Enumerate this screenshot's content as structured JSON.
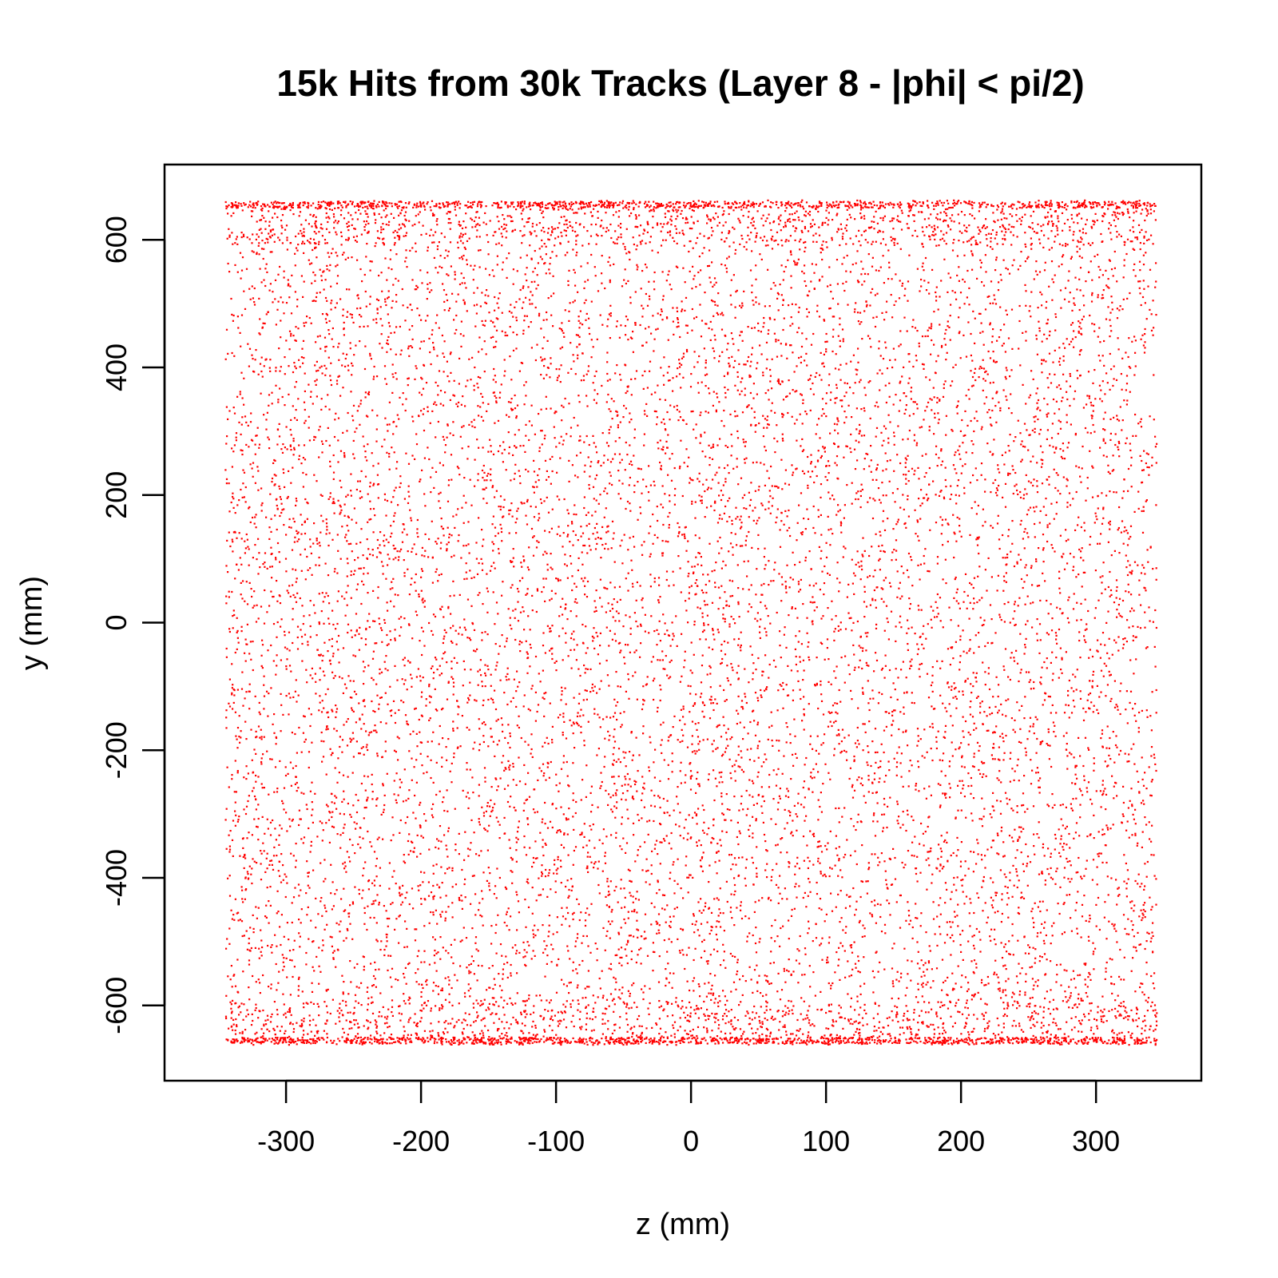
{
  "chart_data": {
    "type": "scatter",
    "title": "15k Hits from 30k Tracks (Layer 8 - |phi| < pi/2)",
    "xlabel": "z (mm)",
    "ylabel": "y (mm)",
    "xlim": [
      -390,
      378
    ],
    "ylim": [
      -718,
      718
    ],
    "x_ticks": [
      -300,
      -200,
      -100,
      0,
      100,
      200,
      300
    ],
    "x_tick_labels": [
      "-300",
      "-200",
      "-100",
      "0",
      "100",
      "200",
      "300"
    ],
    "y_ticks": [
      -600,
      -400,
      -200,
      0,
      200,
      400,
      600
    ],
    "y_tick_labels": [
      "-600",
      "-400",
      "-200",
      "0",
      "200",
      "400",
      "600"
    ],
    "grid": false,
    "series": [
      {
        "color": "#ff0000",
        "marker": "small dot",
        "point_count": 15000,
        "distribution": {
          "z_range": [
            -345,
            345
          ],
          "y_range": [
            -662,
            662
          ],
          "density_peaks_near_y": [
            -660,
            660
          ]
        }
      }
    ]
  }
}
